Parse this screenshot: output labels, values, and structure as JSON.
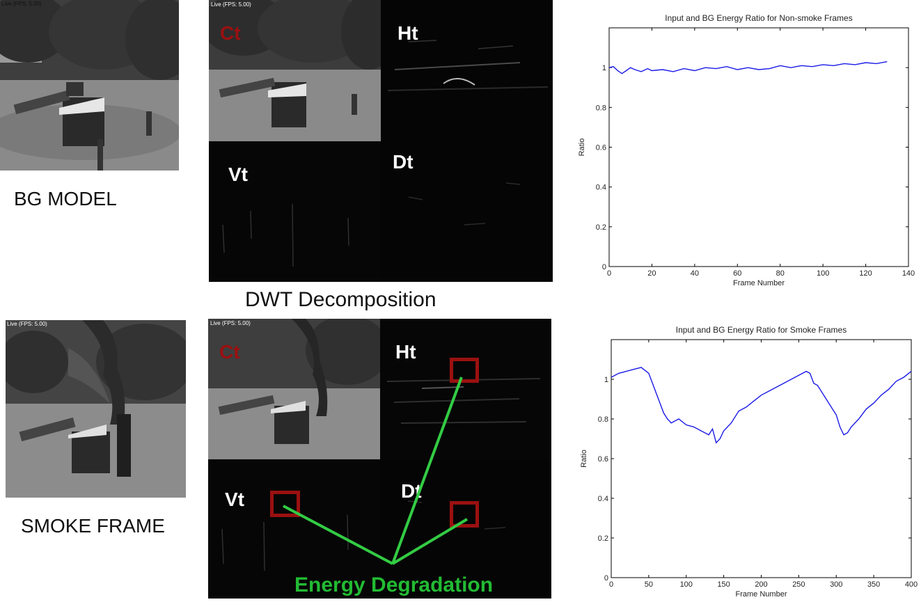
{
  "labels": {
    "bg_model": "BG MODEL",
    "smoke_frame": "SMOKE FRAME",
    "dwt_decomposition": "DWT Decomposition",
    "energy_degradation": "Energy Degradation",
    "overlay_text": "Live (FPS: 5.00)"
  },
  "dwt_quadrants": {
    "ct": "Ct",
    "ht": "Ht",
    "vt": "Vt",
    "dt": "Dt"
  },
  "colors": {
    "series_line": "#1a1ae6",
    "ct_label": "#9b1010",
    "highlight_box": "#9b1010",
    "energy_text": "#22bb33",
    "energy_lines": "#33cc44"
  },
  "chart_data": [
    {
      "type": "line",
      "title": "Input and BG Energy Ratio for Non-smoke Frames",
      "xlabel": "Frame Number",
      "ylabel": "Ratio",
      "xlim": [
        0,
        140
      ],
      "ylim": [
        0,
        1.2
      ],
      "xticks": [
        0,
        20,
        40,
        60,
        80,
        100,
        120,
        140
      ],
      "yticks": [
        0,
        0.2,
        0.4,
        0.6,
        0.8,
        1
      ],
      "series": [
        {
          "x": [
            0,
            2,
            4,
            6,
            8,
            10,
            12,
            15,
            18,
            20,
            25,
            30,
            35,
            40,
            45,
            50,
            55,
            60,
            65,
            70,
            75,
            80,
            85,
            90,
            95,
            100,
            105,
            110,
            115,
            120,
            125,
            130
          ],
          "y": [
            1.0,
            1.005,
            0.985,
            0.97,
            0.985,
            1.0,
            0.99,
            0.98,
            0.995,
            0.985,
            0.99,
            0.98,
            0.995,
            0.985,
            1.0,
            0.995,
            1.005,
            0.99,
            1.0,
            0.99,
            0.995,
            1.01,
            1.0,
            1.01,
            1.005,
            1.015,
            1.01,
            1.02,
            1.015,
            1.025,
            1.02,
            1.03
          ]
        }
      ]
    },
    {
      "type": "line",
      "title": "Input and BG Energy Ratio for Smoke Frames",
      "xlabel": "Frame Number",
      "ylabel": "Ratio",
      "xlim": [
        0,
        400
      ],
      "ylim": [
        0,
        1.2
      ],
      "xticks": [
        0,
        50,
        100,
        150,
        200,
        250,
        300,
        350,
        400
      ],
      "yticks": [
        0,
        0.2,
        0.4,
        0.6,
        0.8,
        1
      ],
      "series": [
        {
          "x": [
            0,
            10,
            20,
            30,
            40,
            50,
            55,
            60,
            65,
            70,
            75,
            80,
            90,
            100,
            110,
            120,
            130,
            135,
            140,
            145,
            150,
            160,
            170,
            180,
            190,
            200,
            210,
            220,
            230,
            240,
            250,
            260,
            265,
            270,
            275,
            280,
            290,
            300,
            305,
            310,
            315,
            320,
            330,
            340,
            350,
            360,
            370,
            380,
            390,
            400
          ],
          "y": [
            1.01,
            1.03,
            1.04,
            1.05,
            1.06,
            1.03,
            0.98,
            0.93,
            0.88,
            0.83,
            0.8,
            0.78,
            0.8,
            0.77,
            0.76,
            0.74,
            0.72,
            0.75,
            0.68,
            0.7,
            0.74,
            0.78,
            0.84,
            0.86,
            0.89,
            0.92,
            0.94,
            0.96,
            0.98,
            1.0,
            1.02,
            1.04,
            1.03,
            0.98,
            0.97,
            0.94,
            0.88,
            0.82,
            0.76,
            0.72,
            0.73,
            0.76,
            0.8,
            0.85,
            0.88,
            0.92,
            0.95,
            0.99,
            1.01,
            1.04
          ]
        }
      ]
    }
  ]
}
